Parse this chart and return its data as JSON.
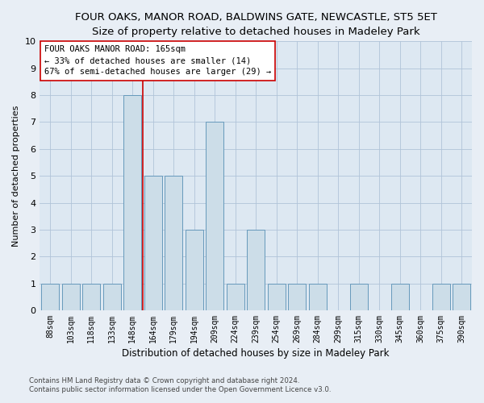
{
  "title": "FOUR OAKS, MANOR ROAD, BALDWINS GATE, NEWCASTLE, ST5 5ET",
  "subtitle": "Size of property relative to detached houses in Madeley Park",
  "xlabel": "Distribution of detached houses by size in Madeley Park",
  "ylabel": "Number of detached properties",
  "categories": [
    "88sqm",
    "103sqm",
    "118sqm",
    "133sqm",
    "148sqm",
    "164sqm",
    "179sqm",
    "194sqm",
    "209sqm",
    "224sqm",
    "239sqm",
    "254sqm",
    "269sqm",
    "284sqm",
    "299sqm",
    "315sqm",
    "330sqm",
    "345sqm",
    "360sqm",
    "375sqm",
    "390sqm"
  ],
  "values": [
    1,
    1,
    1,
    1,
    8,
    5,
    5,
    3,
    7,
    1,
    3,
    1,
    1,
    1,
    0,
    1,
    0,
    1,
    0,
    1,
    1
  ],
  "bar_color": "#ccdde8",
  "bar_edge_color": "#6699bb",
  "ref_line_index": 4,
  "annotation_line1": "FOUR OAKS MANOR ROAD: 165sqm",
  "annotation_line2": "← 33% of detached houses are smaller (14)",
  "annotation_line3": "67% of semi-detached houses are larger (29) →",
  "annotation_box_facecolor": "#ffffff",
  "annotation_box_edgecolor": "#cc0000",
  "ref_line_color": "#cc0000",
  "ylim": [
    0,
    10
  ],
  "yticks": [
    0,
    1,
    2,
    3,
    4,
    5,
    6,
    7,
    8,
    9,
    10
  ],
  "title_fontsize": 9.5,
  "subtitle_fontsize": 8.5,
  "xlabel_fontsize": 8.5,
  "ylabel_fontsize": 8,
  "tick_fontsize": 7,
  "annot_fontsize": 7.5,
  "footer1": "Contains HM Land Registry data © Crown copyright and database right 2024.",
  "footer2": "Contains public sector information licensed under the Open Government Licence v3.0.",
  "figure_bg": "#e8eef5",
  "plot_bg": "#dde8f2",
  "grid_color": "#b0c4d8",
  "spine_color": "#aabbcc"
}
